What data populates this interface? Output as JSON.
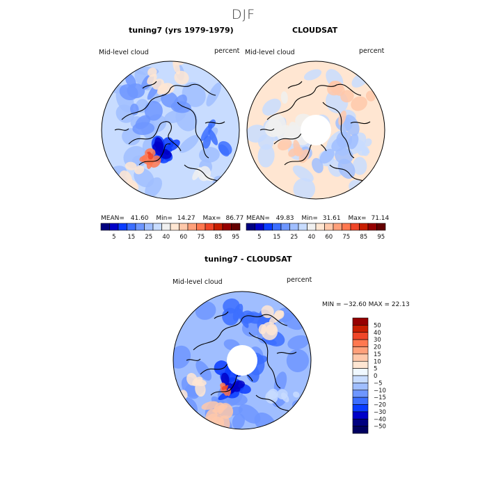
{
  "figure_title": "DJF",
  "palette_hcol": [
    "#000080",
    "#0000c8",
    "#0a3cff",
    "#3c6eff",
    "#6e96ff",
    "#a0beff",
    "#c8dcff",
    "#f0f0f0",
    "#ffe6d2",
    "#ffc8aa",
    "#ffa07a",
    "#ff7850",
    "#f04628",
    "#c81e00",
    "#960000",
    "#640000"
  ],
  "palette_diff": [
    "#000080",
    "#0000c8",
    "#0a3cff",
    "#3c6eff",
    "#6e96ff",
    "#a0beff",
    "#c8dcff",
    "#f0f8ff",
    "#ffe6d2",
    "#ffc8aa",
    "#ffa07a",
    "#ff7850",
    "#f04628",
    "#c81e00",
    "#960000"
  ],
  "panels": [
    {
      "title": "tuning7 (yrs 1979-1979)",
      "variable": "Mid-level cloud",
      "units": "percent",
      "stats": {
        "mean_label": "MEAN=",
        "mean": "41.60",
        "min_label": "Min=",
        "min": "14.27",
        "max_label": "Max=",
        "max": "86.77"
      },
      "colorbar_labels": [
        "5",
        "15",
        "25",
        "40",
        "60",
        "75",
        "85",
        "95"
      ],
      "has_hole": false
    },
    {
      "title": "CLOUDSAT",
      "variable": "Mid-level cloud",
      "units": "percent",
      "stats": {
        "mean_label": "MEAN=",
        "mean": "49.83",
        "min_label": "Min=",
        "min": "31.61",
        "max_label": "Max=",
        "max": "71.14"
      },
      "colorbar_labels": [
        "5",
        "15",
        "25",
        "40",
        "60",
        "75",
        "85",
        "95"
      ],
      "has_hole": true
    }
  ],
  "diff_panel": {
    "title": "tuning7 - CLOUDSAT",
    "variable": "Mid-level cloud",
    "units": "percent",
    "minmax_text": "MIN = −32.60 MAX =  22.13",
    "colorbar_labels": [
      "50",
      "40",
      "30",
      "20",
      "15",
      "10",
      "5",
      "0",
      "−5",
      "−10",
      "−15",
      "−20",
      "−30",
      "−40",
      "−50"
    ],
    "has_hole": true
  }
}
